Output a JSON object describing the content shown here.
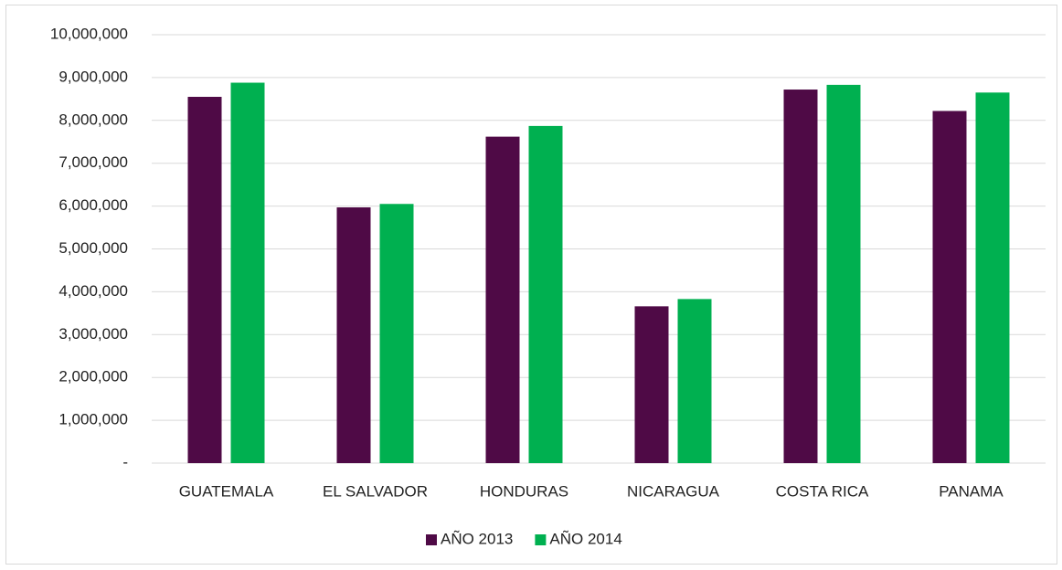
{
  "chart_data": {
    "type": "bar",
    "categories": [
      "GUATEMALA",
      "EL SALVADOR",
      "HONDURAS",
      "NICARAGUA",
      "COSTA RICA",
      "PANAMA"
    ],
    "series": [
      {
        "name": "AÑO 2013",
        "color": "#4f0a46",
        "values": [
          8550000,
          5970000,
          7620000,
          3660000,
          8720000,
          8220000
        ]
      },
      {
        "name": "AÑO 2014",
        "color": "#00b050",
        "values": [
          8880000,
          6050000,
          7870000,
          3830000,
          8830000,
          8650000
        ]
      }
    ],
    "ylim": [
      0,
      10000000
    ],
    "yticks": [
      {
        "value": 0,
        "label": "-"
      },
      {
        "value": 1000000,
        "label": "1,000,000"
      },
      {
        "value": 2000000,
        "label": "2,000,000"
      },
      {
        "value": 3000000,
        "label": "3,000,000"
      },
      {
        "value": 4000000,
        "label": "4,000,000"
      },
      {
        "value": 5000000,
        "label": "5,000,000"
      },
      {
        "value": 6000000,
        "label": "6,000,000"
      },
      {
        "value": 7000000,
        "label": "7,000,000"
      },
      {
        "value": 8000000,
        "label": "8,000,000"
      },
      {
        "value": 9000000,
        "label": "9,000,000"
      },
      {
        "value": 10000000,
        "label": "10,000,000"
      }
    ],
    "grid": true,
    "legend": "bottom"
  }
}
